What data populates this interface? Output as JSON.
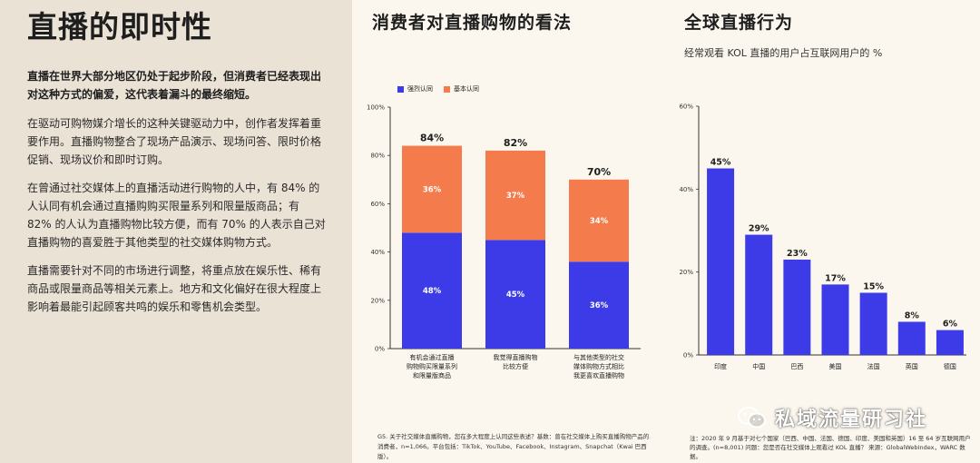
{
  "left": {
    "title": "直播的即时性",
    "lead": "直播在世界大部分地区仍处于起步阶段，但消费者已经表现出对这种方式的偏爱，这代表着漏斗的最终缩短。",
    "paragraphs": [
      "在驱动可购物媒介增长的这种关键驱动力中，创作者发挥着重要作用。直播购物整合了现场产品演示、现场问答、限时价格促销、现场议价和即时订购。",
      "在曾通过社交媒体上的直播活动进行购物的人中，有 84% 的人认同有机会通过直播购购买限量系列和限量版商品；有 82% 的人认为直播购物比较方便，而有 70% 的人表示自己对直播购物的喜爱胜于其他类型的社交媒体购物方式。",
      "直播需要针对不同的市场进行调整，将重点放在娱乐性、稀有商品或限量商品等相关元素上。地方和文化偏好在很大程度上影响着最能引起顾客共鸣的娱乐和零售机会类型。"
    ]
  },
  "mid": {
    "title": "消费者对直播购物的看法",
    "footnote": "G5. 关于社交媒体直播购物，您在多大程度上认同这些表述？基数：曾在社交媒体上购买直播购物产品的消费者，n=1,066。平台包括：TikTok、YouTube、Facebook、Instagram、Snapchat（Kwai 巴西版）。"
  },
  "right": {
    "title": "全球直播行为",
    "subtitle": "经常观看 KOL 直播的用户占互联网用户的 %",
    "footnote": "注：2020 年 9 月基于对七个国家（巴西、中国、法国、德国、印度、美国和英国）16 至 64 岁互联网用户的调查。(n=8,001) 问题：您是否在社交媒体上观看过 KOL 直播？ 来源：GlobalWebIndex，WARC 数据。"
  },
  "watermark": {
    "text": "私域流量研习社",
    "icon": "wechat-icon"
  },
  "colors": {
    "blue": "#3d3be8",
    "orange": "#f47c4c",
    "panel": "#ebe2d6",
    "page": "#fbf7ee"
  },
  "chart_data": [
    {
      "type": "bar",
      "stacked": true,
      "title": "消费者对直播购物的看法",
      "categories": [
        "有机会通过直播\n购物购买限量系列\n和限量版商品",
        "我觉得直播购物\n比较方便",
        "与其他类型的社交\n媒体购物方式相比\n我更喜欢直播购物"
      ],
      "series": [
        {
          "name": "强烈认同",
          "values": [
            48,
            45,
            36
          ],
          "labels": [
            "48%",
            "45%",
            "36%"
          ],
          "color": "#3d3be8"
        },
        {
          "name": "基本认同",
          "values": [
            36,
            37,
            34
          ],
          "labels": [
            "36%",
            "37%",
            "34%"
          ],
          "color": "#f47c4c"
        }
      ],
      "totals": [
        "84%",
        "82%",
        "70%"
      ],
      "ylim": [
        0,
        100
      ],
      "yticks": [
        "0%",
        "20%",
        "40%",
        "60%",
        "80%",
        "100%"
      ],
      "legend": "top-left",
      "grid": false
    },
    {
      "type": "bar",
      "title": "全球直播行为",
      "categories": [
        "印度",
        "中国",
        "巴西",
        "美国",
        "法国",
        "英国",
        "德国"
      ],
      "values": [
        45,
        29,
        23,
        17,
        15,
        8,
        6
      ],
      "labels": [
        "45%",
        "29%",
        "23%",
        "17%",
        "15%",
        "8%",
        "6%"
      ],
      "ylim": [
        0,
        60
      ],
      "yticks": [
        "0%",
        "20%",
        "40%",
        "60%"
      ],
      "grid": false,
      "color": "#3d3be8"
    }
  ]
}
